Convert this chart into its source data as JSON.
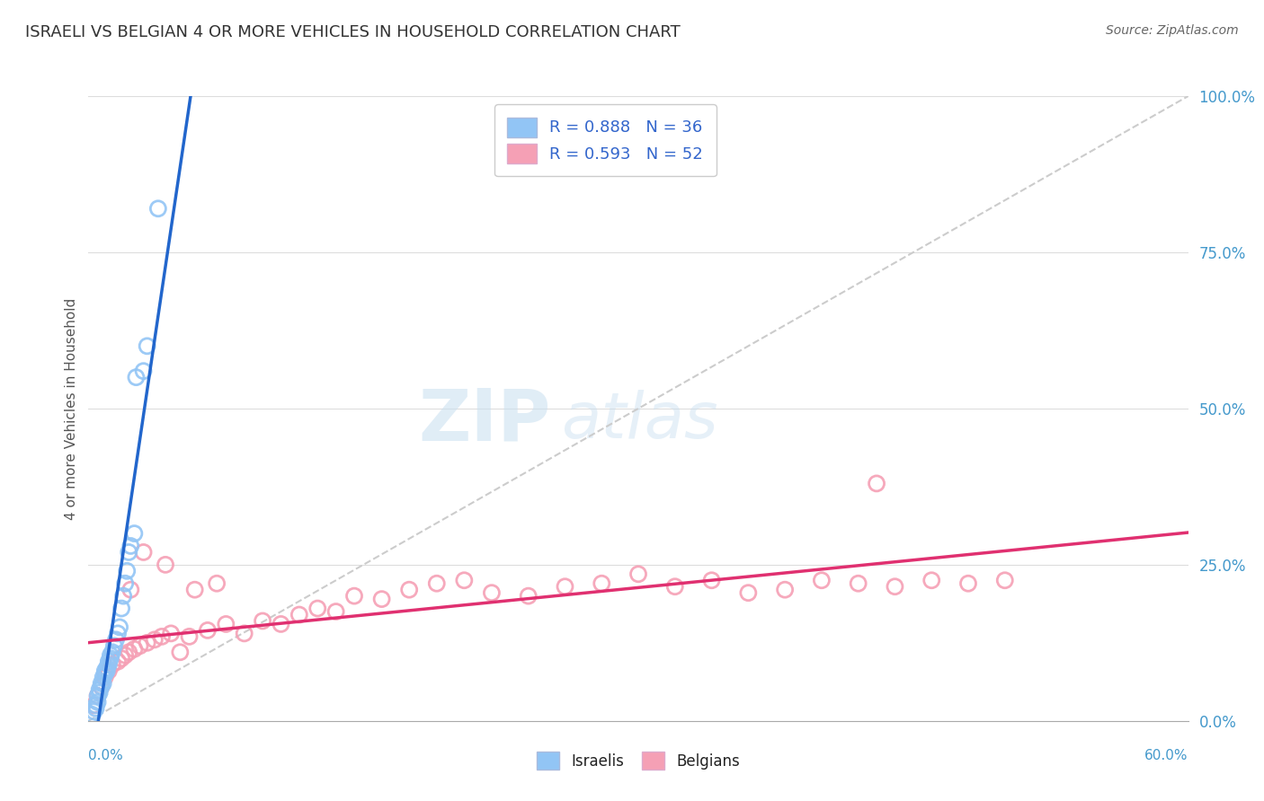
{
  "title": "ISRAELI VS BELGIAN 4 OR MORE VEHICLES IN HOUSEHOLD CORRELATION CHART",
  "source": "Source: ZipAtlas.com",
  "ylabel": "4 or more Vehicles in Household",
  "ytick_vals": [
    0.0,
    25.0,
    50.0,
    75.0,
    100.0
  ],
  "xrange": [
    0.0,
    60.0
  ],
  "yrange": [
    0.0,
    100.0
  ],
  "israeli_color": "#92C5F5",
  "belgian_color": "#F5A0B5",
  "israeli_line_color": "#2266CC",
  "belgian_line_color": "#E03070",
  "diagonal_color": "#CCCCCC",
  "watermark_zip": "ZIP",
  "watermark_atlas": "atlas",
  "legend_R_israeli": "0.888",
  "legend_N_israeli": "36",
  "legend_R_belgian": "0.593",
  "legend_N_belgian": "52",
  "israeli_x": [
    0.2,
    0.3,
    0.4,
    0.4,
    0.5,
    0.5,
    0.6,
    0.6,
    0.7,
    0.7,
    0.8,
    0.8,
    0.9,
    0.9,
    1.0,
    1.0,
    1.1,
    1.1,
    1.2,
    1.2,
    1.3,
    1.4,
    1.5,
    1.6,
    1.7,
    1.8,
    1.9,
    2.0,
    2.1,
    2.2,
    2.3,
    2.5,
    2.6,
    3.0,
    3.2,
    3.8
  ],
  "israeli_y": [
    1.0,
    1.5,
    2.0,
    2.5,
    3.0,
    4.0,
    4.5,
    5.0,
    5.5,
    6.0,
    6.0,
    7.0,
    7.5,
    8.0,
    8.0,
    8.5,
    9.0,
    9.5,
    10.0,
    10.5,
    11.0,
    12.0,
    13.0,
    14.0,
    15.0,
    18.0,
    20.0,
    22.0,
    24.0,
    27.0,
    28.0,
    30.0,
    55.0,
    56.0,
    60.0,
    82.0
  ],
  "belgian_x": [
    0.3,
    0.5,
    0.7,
    0.9,
    1.1,
    1.3,
    1.6,
    1.8,
    2.0,
    2.2,
    2.5,
    2.8,
    3.2,
    3.6,
    4.0,
    4.5,
    5.0,
    5.5,
    6.5,
    7.5,
    8.5,
    9.5,
    10.5,
    11.5,
    12.5,
    13.5,
    14.5,
    16.0,
    17.5,
    19.0,
    20.5,
    22.0,
    24.0,
    26.0,
    28.0,
    30.0,
    32.0,
    34.0,
    36.0,
    38.0,
    40.0,
    42.0,
    44.0,
    46.0,
    48.0,
    50.0,
    2.3,
    3.0,
    4.2,
    5.8,
    7.0,
    43.0
  ],
  "belgian_y": [
    2.5,
    4.0,
    5.5,
    7.0,
    8.0,
    9.0,
    9.5,
    10.0,
    10.5,
    11.0,
    11.5,
    12.0,
    12.5,
    13.0,
    13.5,
    14.0,
    11.0,
    13.5,
    14.5,
    15.5,
    14.0,
    16.0,
    15.5,
    17.0,
    18.0,
    17.5,
    20.0,
    19.5,
    21.0,
    22.0,
    22.5,
    20.5,
    20.0,
    21.5,
    22.0,
    23.5,
    21.5,
    22.5,
    20.5,
    21.0,
    22.5,
    22.0,
    21.5,
    22.5,
    22.0,
    22.5,
    21.0,
    27.0,
    25.0,
    21.0,
    22.0,
    38.0
  ],
  "background_color": "#FFFFFF",
  "grid_color": "#DDDDDD",
  "title_color": "#333333",
  "axis_label_color": "#4499CC",
  "legend_text_color": "#3366CC"
}
